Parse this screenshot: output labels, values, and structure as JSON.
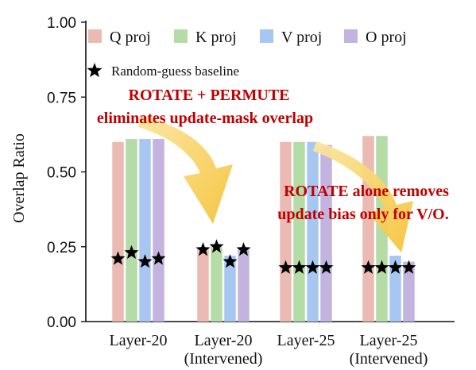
{
  "chart_data": {
    "type": "bar",
    "title": "",
    "xlabel": "",
    "ylabel": "Overlap Ratio",
    "ylim": [
      0,
      1
    ],
    "yticks": [
      "0.00",
      "0.25",
      "0.50",
      "0.75",
      "1.00"
    ],
    "categories": [
      [
        "Layer-20"
      ],
      [
        "Layer-20",
        "(Intervened)"
      ],
      [
        "Layer-25"
      ],
      [
        "Layer-25",
        "(Intervened)"
      ]
    ],
    "series": [
      {
        "name": "Q proj",
        "color": "#ebbbb3",
        "values": [
          0.6,
          0.24,
          0.6,
          0.62
        ],
        "baseline": [
          0.21,
          0.24,
          0.18,
          0.18
        ]
      },
      {
        "name": "K proj",
        "color": "#b5dba6",
        "values": [
          0.61,
          0.25,
          0.6,
          0.62
        ],
        "baseline": [
          0.23,
          0.25,
          0.18,
          0.18
        ]
      },
      {
        "name": "V proj",
        "color": "#a7c7f2",
        "values": [
          0.61,
          0.22,
          0.6,
          0.22
        ],
        "baseline": [
          0.2,
          0.2,
          0.18,
          0.18
        ]
      },
      {
        "name": "O proj",
        "color": "#c3b4df",
        "values": [
          0.61,
          0.24,
          0.59,
          0.2
        ],
        "baseline": [
          0.21,
          0.24,
          0.18,
          0.18
        ]
      }
    ],
    "baseline_label": "Random-guess baseline",
    "legend_position": "top",
    "grid": false,
    "annotations": [
      {
        "lines": [
          "ROTATE + PERMUTE",
          "eliminates update-mask overlap"
        ],
        "color": "#c00000"
      },
      {
        "lines": [
          "ROTATE alone removes",
          "update bias only for V/O."
        ],
        "color": "#c00000"
      }
    ],
    "arrow_color": "#f5c542"
  }
}
